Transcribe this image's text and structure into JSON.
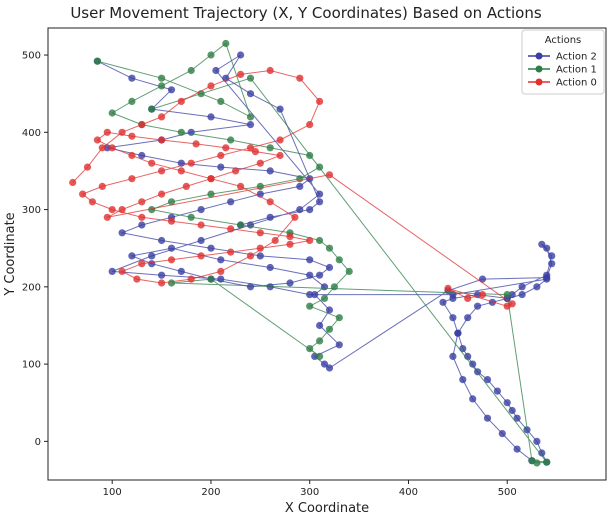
{
  "chart_data": {
    "type": "line",
    "title": "User Movement Trajectory (X, Y Coordinates) Based on Actions",
    "xlabel": "X Coordinate",
    "ylabel": "Y Coordinate",
    "xlim": [
      35,
      600
    ],
    "ylim": [
      -50,
      535
    ],
    "xticks": [
      100,
      200,
      300,
      400,
      500
    ],
    "yticks": [
      0,
      100,
      200,
      300,
      400,
      500
    ],
    "grid": false,
    "legend": {
      "title": "Actions",
      "placement": "top-right"
    },
    "series": [
      {
        "name": "Action 2",
        "color": "#3a3fa3",
        "x": [
          85,
          120,
          160,
          140,
          200,
          240,
          180,
          150,
          95,
          130,
          170,
          210,
          260,
          300,
          290,
          250,
          220,
          190,
          160,
          130,
          110,
          150,
          200,
          250,
          300,
          320,
          310,
          280,
          240,
          200,
          170,
          140,
          120,
          160,
          210,
          260,
          300,
          315,
          305,
          320,
          310,
          330,
          305,
          315,
          320,
          440,
          475,
          540,
          545,
          540,
          535,
          545,
          540,
          515,
          505,
          500,
          470,
          445,
          435,
          445,
          450,
          455,
          460,
          465,
          470,
          480,
          490,
          500,
          505,
          510,
          520,
          530,
          535,
          540,
          525,
          510,
          495,
          480,
          465,
          455,
          445,
          450,
          460,
          470,
          485,
          500,
          515,
          530,
          540,
          445,
          300,
          260,
          210,
          150,
          100,
          140,
          190,
          240,
          290,
          310,
          205,
          230,
          215,
          240,
          270,
          310,
          300,
          260,
          230
        ],
        "y": [
          492,
          470,
          455,
          430,
          420,
          410,
          400,
          390,
          380,
          370,
          360,
          355,
          350,
          340,
          330,
          320,
          310,
          300,
          290,
          280,
          270,
          260,
          250,
          240,
          235,
          225,
          215,
          205,
          200,
          210,
          220,
          230,
          240,
          250,
          235,
          225,
          215,
          200,
          190,
          170,
          150,
          125,
          110,
          100,
          95,
          195,
          210,
          212,
          230,
          250,
          255,
          240,
          215,
          200,
          190,
          185,
          190,
          185,
          180,
          160,
          140,
          120,
          110,
          100,
          90,
          80,
          65,
          50,
          40,
          30,
          15,
          0,
          -15,
          -27,
          -25,
          -10,
          10,
          30,
          55,
          80,
          110,
          140,
          160,
          175,
          180,
          185,
          190,
          200,
          210,
          190,
          190,
          200,
          210,
          215,
          220,
          240,
          260,
          280,
          300,
          320,
          480,
          500,
          470,
          450,
          430,
          310,
          300,
          290,
          280
        ]
      },
      {
        "name": "Action 1",
        "color": "#2e7d45",
        "x": [
          85,
          150,
          210,
          240,
          215,
          200,
          180,
          150,
          120,
          100,
          130,
          170,
          220,
          260,
          300,
          310,
          290,
          250,
          200,
          160,
          140,
          180,
          230,
          280,
          310,
          320,
          330,
          340,
          325,
          315,
          300,
          330,
          320,
          310,
          300,
          310,
          200,
          160,
          500,
          525,
          530,
          540,
          240,
          190,
          140
        ],
        "y": [
          492,
          470,
          440,
          420,
          515,
          500,
          480,
          460,
          440,
          425,
          410,
          400,
          390,
          380,
          370,
          355,
          340,
          330,
          320,
          310,
          300,
          290,
          280,
          270,
          260,
          250,
          235,
          220,
          200,
          185,
          175,
          160,
          145,
          130,
          120,
          110,
          210,
          205,
          190,
          -25,
          -28,
          -27,
          470,
          450,
          430
        ]
      },
      {
        "name": "Action 0",
        "color": "#e03030",
        "x": [
          60,
          75,
          90,
          110,
          130,
          150,
          170,
          200,
          230,
          260,
          290,
          310,
          300,
          270,
          240,
          210,
          180,
          150,
          120,
          90,
          70,
          80,
          100,
          130,
          160,
          190,
          220,
          250,
          280,
          300,
          280,
          250,
          220,
          190,
          160,
          130,
          110,
          125,
          150,
          180,
          210,
          240,
          265,
          285,
          260,
          230,
          200,
          170,
          140,
          120,
          100,
          85,
          95,
          120,
          150,
          185,
          215,
          245,
          270,
          250,
          225,
          200,
          175,
          150,
          130,
          110,
          95,
          320,
          505,
          500,
          440,
          460,
          475
        ],
        "y": [
          335,
          355,
          380,
          400,
          410,
          420,
          440,
          460,
          475,
          480,
          470,
          440,
          410,
          390,
          380,
          370,
          360,
          350,
          340,
          330,
          320,
          310,
          300,
          290,
          285,
          280,
          275,
          270,
          265,
          260,
          255,
          250,
          245,
          240,
          235,
          230,
          220,
          210,
          205,
          210,
          220,
          240,
          260,
          290,
          310,
          330,
          340,
          350,
          360,
          370,
          380,
          390,
          400,
          395,
          390,
          385,
          380,
          375,
          370,
          360,
          350,
          340,
          330,
          320,
          310,
          300,
          290,
          345,
          178,
          175,
          198,
          185,
          190
        ]
      }
    ]
  }
}
